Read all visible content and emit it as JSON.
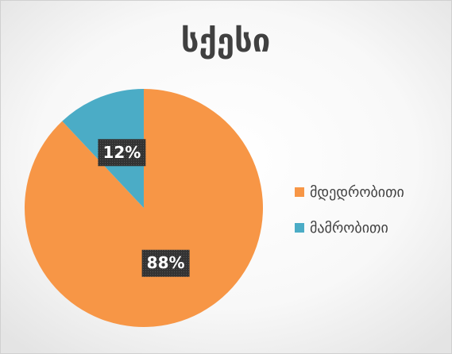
{
  "chart_data": {
    "type": "pie",
    "title": "სქესი",
    "categories": [
      "მდედრობითი",
      "მამრობითი"
    ],
    "values": [
      88,
      12
    ],
    "value_labels": [
      "88%",
      "12%"
    ],
    "colors": [
      "#f79646",
      "#4bacc6"
    ],
    "legend": "right"
  }
}
